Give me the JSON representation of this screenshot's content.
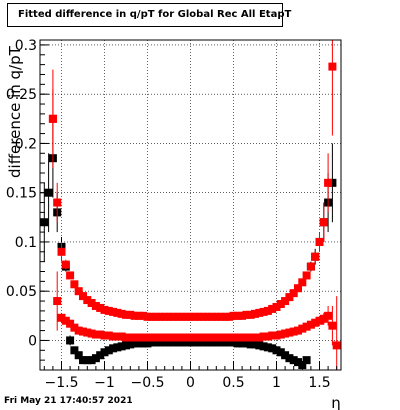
{
  "chart_data": {
    "type": "scatter",
    "title": "Fitted difference in q/pT for Global Rec All EtapT",
    "xlabel": "η",
    "ylabel": "difference in q/pT",
    "xlim": [
      -1.75,
      1.75
    ],
    "ylim": [
      -0.03,
      0.305
    ],
    "xticks": [
      -1.5,
      -1,
      -0.5,
      0,
      0.5,
      1,
      1.5
    ],
    "xtick_labels": [
      "−1.5",
      "−1",
      "−0.5",
      "0",
      "0.5",
      "1",
      "1.5"
    ],
    "yticks": [
      0,
      0.05,
      0.1,
      0.15,
      0.2,
      0.25,
      0.3
    ],
    "ytick_labels": [
      "0",
      "0.05",
      "0.1",
      "0.15",
      "0.2",
      "0.25",
      "0.3"
    ],
    "grid": true,
    "series": [
      {
        "color": "#000000",
        "points": [
          [
            -1.7,
            0.12,
            0.04
          ],
          [
            -1.65,
            0.15,
            0.04
          ],
          [
            -1.6,
            0.185,
            0.04
          ],
          [
            -1.55,
            0.13,
            0.02
          ],
          [
            -1.5,
            0.095,
            0.01
          ],
          [
            -1.45,
            0.075,
            0.005
          ],
          [
            -1.4,
            0.0,
            0.005
          ],
          [
            -1.35,
            -0.01,
            0.003
          ],
          [
            -1.3,
            -0.015,
            0.002
          ],
          [
            -1.25,
            -0.02,
            0.002
          ],
          [
            -1.2,
            -0.02,
            0.002
          ],
          [
            -1.15,
            -0.02,
            0.001
          ],
          [
            -1.1,
            -0.018,
            0.001
          ],
          [
            -1.05,
            -0.015,
            0.001
          ],
          [
            -1.0,
            -0.012,
            0.001
          ],
          [
            -0.95,
            -0.01,
            0.001
          ],
          [
            -0.9,
            -0.008,
            0.001
          ],
          [
            -0.85,
            -0.007,
            0.001
          ],
          [
            -0.8,
            -0.006,
            0.001
          ],
          [
            -0.75,
            -0.005,
            0.001
          ],
          [
            -0.7,
            -0.004,
            0.001
          ],
          [
            -0.65,
            -0.003,
            0.001
          ],
          [
            -0.6,
            -0.003,
            0.001
          ],
          [
            -0.55,
            -0.003,
            0.001
          ],
          [
            -0.5,
            -0.003,
            0.001
          ],
          [
            -0.45,
            -0.002,
            0.001
          ],
          [
            -0.4,
            -0.002,
            0.001
          ],
          [
            -0.35,
            -0.002,
            0.001
          ],
          [
            -0.3,
            -0.002,
            0.001
          ],
          [
            -0.25,
            -0.002,
            0.001
          ],
          [
            -0.2,
            -0.002,
            0.001
          ],
          [
            -0.15,
            -0.002,
            0.001
          ],
          [
            -0.1,
            -0.002,
            0.001
          ],
          [
            -0.05,
            -0.002,
            0.001
          ],
          [
            0.0,
            -0.002,
            0.001
          ],
          [
            0.05,
            -0.002,
            0.001
          ],
          [
            0.1,
            -0.002,
            0.001
          ],
          [
            0.15,
            -0.002,
            0.001
          ],
          [
            0.2,
            -0.002,
            0.001
          ],
          [
            0.25,
            -0.002,
            0.001
          ],
          [
            0.3,
            -0.002,
            0.001
          ],
          [
            0.35,
            -0.002,
            0.001
          ],
          [
            0.4,
            -0.002,
            0.001
          ],
          [
            0.45,
            -0.002,
            0.001
          ],
          [
            0.5,
            -0.002,
            0.001
          ],
          [
            0.55,
            -0.003,
            0.001
          ],
          [
            0.6,
            -0.003,
            0.001
          ],
          [
            0.65,
            -0.003,
            0.001
          ],
          [
            0.7,
            -0.004,
            0.001
          ],
          [
            0.75,
            -0.004,
            0.001
          ],
          [
            0.8,
            -0.005,
            0.001
          ],
          [
            0.85,
            -0.006,
            0.001
          ],
          [
            0.9,
            -0.007,
            0.001
          ],
          [
            0.95,
            -0.008,
            0.001
          ],
          [
            1.0,
            -0.01,
            0.001
          ],
          [
            1.05,
            -0.012,
            0.001
          ],
          [
            1.1,
            -0.015,
            0.001
          ],
          [
            1.15,
            -0.018,
            0.001
          ],
          [
            1.2,
            -0.02,
            0.002
          ],
          [
            1.25,
            -0.022,
            0.002
          ],
          [
            1.3,
            -0.025,
            0.002
          ],
          [
            1.35,
            -0.02,
            0.003
          ],
          [
            1.4,
            0.075,
            0.005
          ],
          [
            1.45,
            0.085,
            0.008
          ],
          [
            1.5,
            0.1,
            0.01
          ],
          [
            1.55,
            0.12,
            0.02
          ],
          [
            1.6,
            0.14,
            0.03
          ],
          [
            1.65,
            0.16,
            0.04
          ]
        ]
      },
      {
        "color": "#ff0000",
        "points": [
          [
            -1.6,
            0.225,
            0.05
          ],
          [
            -1.55,
            0.04,
            0.03
          ],
          [
            -1.5,
            0.023,
            0.005
          ],
          [
            -1.45,
            0.02,
            0.003
          ],
          [
            -1.4,
            0.017,
            0.002
          ],
          [
            -1.35,
            0.013,
            0.002
          ],
          [
            -1.3,
            0.01,
            0.001
          ],
          [
            -1.25,
            0.009,
            0.001
          ],
          [
            -1.2,
            0.008,
            0.001
          ],
          [
            -1.15,
            0.007,
            0.001
          ],
          [
            -1.1,
            0.006,
            0.001
          ],
          [
            -1.05,
            0.006,
            0.001
          ],
          [
            -1.0,
            0.005,
            0.001
          ],
          [
            -0.95,
            0.005,
            0.001
          ],
          [
            -0.9,
            0.004,
            0.001
          ],
          [
            -0.85,
            0.004,
            0.001
          ],
          [
            -0.8,
            0.004,
            0.001
          ],
          [
            -0.75,
            0.003,
            0.001
          ],
          [
            -0.7,
            0.003,
            0.001
          ],
          [
            -0.65,
            0.003,
            0.001
          ],
          [
            -0.6,
            0.003,
            0.001
          ],
          [
            -0.55,
            0.003,
            0.001
          ],
          [
            -0.5,
            0.003,
            0.001
          ],
          [
            -0.45,
            0.003,
            0.001
          ],
          [
            -0.4,
            0.003,
            0.001
          ],
          [
            -0.35,
            0.003,
            0.001
          ],
          [
            -0.3,
            0.003,
            0.001
          ],
          [
            -0.25,
            0.003,
            0.001
          ],
          [
            -0.2,
            0.003,
            0.001
          ],
          [
            -0.15,
            0.003,
            0.001
          ],
          [
            -0.1,
            0.003,
            0.001
          ],
          [
            -0.05,
            0.003,
            0.001
          ],
          [
            0.0,
            0.003,
            0.001
          ],
          [
            0.05,
            0.003,
            0.001
          ],
          [
            0.1,
            0.003,
            0.001
          ],
          [
            0.15,
            0.003,
            0.001
          ],
          [
            0.2,
            0.003,
            0.001
          ],
          [
            0.25,
            0.003,
            0.001
          ],
          [
            0.3,
            0.003,
            0.001
          ],
          [
            0.35,
            0.003,
            0.001
          ],
          [
            0.4,
            0.003,
            0.001
          ],
          [
            0.45,
            0.003,
            0.001
          ],
          [
            0.5,
            0.003,
            0.001
          ],
          [
            0.55,
            0.003,
            0.001
          ],
          [
            0.6,
            0.003,
            0.001
          ],
          [
            0.65,
            0.003,
            0.001
          ],
          [
            0.7,
            0.003,
            0.001
          ],
          [
            0.75,
            0.003,
            0.001
          ],
          [
            0.8,
            0.003,
            0.001
          ],
          [
            0.85,
            0.004,
            0.001
          ],
          [
            0.9,
            0.004,
            0.001
          ],
          [
            0.95,
            0.005,
            0.001
          ],
          [
            1.0,
            0.005,
            0.001
          ],
          [
            1.05,
            0.006,
            0.001
          ],
          [
            1.1,
            0.007,
            0.001
          ],
          [
            1.15,
            0.008,
            0.001
          ],
          [
            1.2,
            0.009,
            0.001
          ],
          [
            1.25,
            0.01,
            0.001
          ],
          [
            1.3,
            0.012,
            0.002
          ],
          [
            1.35,
            0.014,
            0.002
          ],
          [
            1.4,
            0.016,
            0.002
          ],
          [
            1.45,
            0.018,
            0.003
          ],
          [
            1.5,
            0.02,
            0.004
          ],
          [
            1.55,
            0.022,
            0.006
          ],
          [
            1.6,
            0.025,
            0.01
          ],
          [
            1.65,
            0.015,
            0.02
          ],
          [
            1.7,
            -0.005,
            0.05
          ]
        ]
      },
      {
        "color": "#ff0000",
        "points": [
          [
            -1.6,
            0.225,
            0.03
          ],
          [
            -1.55,
            0.14,
            0.02
          ],
          [
            -1.5,
            0.09,
            0.01
          ],
          [
            -1.45,
            0.077,
            0.005
          ],
          [
            -1.4,
            0.066,
            0.003
          ],
          [
            -1.35,
            0.057,
            0.002
          ],
          [
            -1.3,
            0.05,
            0.002
          ],
          [
            -1.25,
            0.045,
            0.002
          ],
          [
            -1.2,
            0.041,
            0.001
          ],
          [
            -1.15,
            0.038,
            0.001
          ],
          [
            -1.1,
            0.035,
            0.001
          ],
          [
            -1.05,
            0.033,
            0.001
          ],
          [
            -1.0,
            0.031,
            0.001
          ],
          [
            -0.95,
            0.03,
            0.001
          ],
          [
            -0.9,
            0.029,
            0.001
          ],
          [
            -0.85,
            0.028,
            0.001
          ],
          [
            -0.8,
            0.027,
            0.001
          ],
          [
            -0.75,
            0.026,
            0.001
          ],
          [
            -0.7,
            0.026,
            0.001
          ],
          [
            -0.65,
            0.025,
            0.001
          ],
          [
            -0.6,
            0.025,
            0.001
          ],
          [
            -0.55,
            0.025,
            0.001
          ],
          [
            -0.5,
            0.024,
            0.001
          ],
          [
            -0.45,
            0.024,
            0.001
          ],
          [
            -0.4,
            0.024,
            0.001
          ],
          [
            -0.35,
            0.024,
            0.001
          ],
          [
            -0.3,
            0.024,
            0.001
          ],
          [
            -0.25,
            0.024,
            0.001
          ],
          [
            -0.2,
            0.024,
            0.001
          ],
          [
            -0.15,
            0.024,
            0.001
          ],
          [
            -0.1,
            0.024,
            0.001
          ],
          [
            -0.05,
            0.024,
            0.001
          ],
          [
            0.0,
            0.024,
            0.001
          ],
          [
            0.05,
            0.024,
            0.001
          ],
          [
            0.1,
            0.024,
            0.001
          ],
          [
            0.15,
            0.024,
            0.001
          ],
          [
            0.2,
            0.024,
            0.001
          ],
          [
            0.25,
            0.024,
            0.001
          ],
          [
            0.3,
            0.024,
            0.001
          ],
          [
            0.35,
            0.024,
            0.001
          ],
          [
            0.4,
            0.024,
            0.001
          ],
          [
            0.45,
            0.024,
            0.001
          ],
          [
            0.5,
            0.025,
            0.001
          ],
          [
            0.55,
            0.025,
            0.001
          ],
          [
            0.6,
            0.025,
            0.001
          ],
          [
            0.65,
            0.026,
            0.001
          ],
          [
            0.7,
            0.026,
            0.001
          ],
          [
            0.75,
            0.027,
            0.001
          ],
          [
            0.8,
            0.028,
            0.001
          ],
          [
            0.85,
            0.029,
            0.001
          ],
          [
            0.9,
            0.03,
            0.001
          ],
          [
            0.95,
            0.032,
            0.001
          ],
          [
            1.0,
            0.034,
            0.001
          ],
          [
            1.05,
            0.037,
            0.001
          ],
          [
            1.1,
            0.04,
            0.001
          ],
          [
            1.15,
            0.044,
            0.001
          ],
          [
            1.2,
            0.048,
            0.002
          ],
          [
            1.25,
            0.053,
            0.002
          ],
          [
            1.3,
            0.059,
            0.002
          ],
          [
            1.35,
            0.066,
            0.003
          ],
          [
            1.4,
            0.075,
            0.004
          ],
          [
            1.45,
            0.085,
            0.006
          ],
          [
            1.5,
            0.1,
            0.01
          ],
          [
            1.55,
            0.12,
            0.02
          ],
          [
            1.6,
            0.16,
            0.03
          ],
          [
            1.65,
            0.278,
            0.07
          ]
        ]
      }
    ]
  },
  "footer": {
    "date_text": "Fri May 21 17:40:57 2021"
  }
}
